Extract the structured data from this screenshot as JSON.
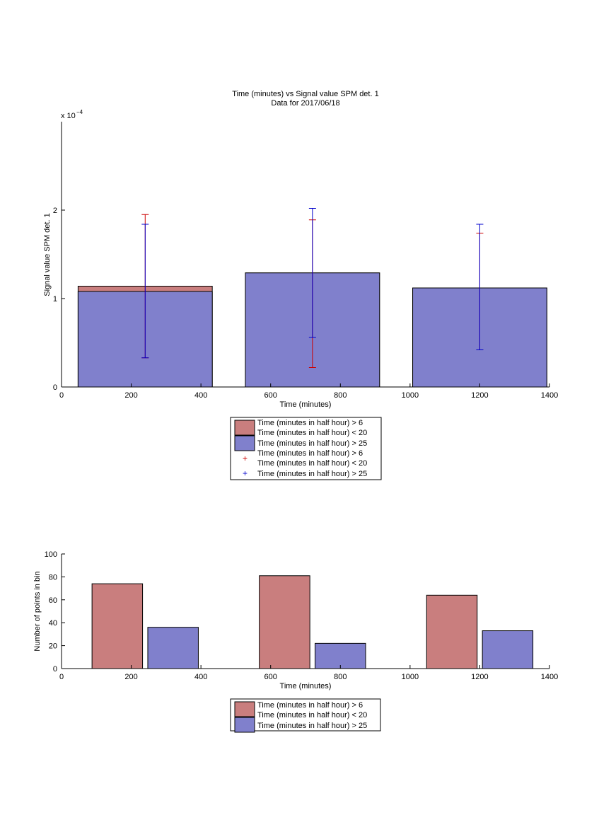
{
  "chart_data": [
    {
      "type": "bar",
      "title": "Time (minutes) vs Signal value SPM det. 1",
      "subtitle": "Data for 2017/06/18",
      "xlabel": "Time (minutes)",
      "ylabel": "Signal value SPM det. 1",
      "exponent_base": "x 10",
      "exponent_power": "−4",
      "xlim": [
        0,
        1400
      ],
      "ylim": [
        0,
        3
      ],
      "xticks": [
        "0",
        "200",
        "400",
        "600",
        "800",
        "1000",
        "1200",
        "1400"
      ],
      "yticks": [
        "0",
        "1",
        "2"
      ],
      "bar_width": 385,
      "bar_centers": [
        240,
        720,
        1200
      ],
      "series": [
        {
          "name": "Time (minutes in half hour) > 6",
          "name_line2": "Time (minutes in half hour) < 20",
          "color": "#c97e7e",
          "values": [
            1.14,
            1.29,
            1.12
          ],
          "errorbars": [
            {
              "x": 240,
              "low": 0.33,
              "high": 1.95
            },
            {
              "x": 720,
              "low": 0.22,
              "high": 1.89
            },
            {
              "x": 1200,
              "low": 0.42,
              "high": 1.74
            }
          ],
          "errorbar_color": "#cc0000"
        },
        {
          "name": "Time (minutes in half hour) > 25",
          "color": "#8080cc",
          "values": [
            1.08,
            1.29,
            1.12
          ],
          "errorbars": [
            {
              "x": 240,
              "low": 0.33,
              "high": 1.84
            },
            {
              "x": 720,
              "low": 0.56,
              "high": 2.02
            },
            {
              "x": 1200,
              "low": 0.42,
              "high": 1.84
            }
          ],
          "errorbar_color": "#0000cc"
        }
      ],
      "grid": false,
      "legend_placement": "below"
    },
    {
      "type": "bar",
      "xlabel": "Time (minutes)",
      "ylabel": "Number of points in bin",
      "xlim": [
        0,
        1400
      ],
      "ylim": [
        0,
        100
      ],
      "xticks": [
        "0",
        "200",
        "400",
        "600",
        "800",
        "1000",
        "1200",
        "1400"
      ],
      "yticks": [
        "0",
        "20",
        "40",
        "60",
        "80",
        "100"
      ],
      "bar_width": 145,
      "series": [
        {
          "name": "Time (minutes in half hour) > 6",
          "name_line2": "Time (minutes in half hour) < 20",
          "color": "#c97e7e",
          "x": [
            160,
            640,
            1120
          ],
          "values": [
            74,
            81,
            64
          ]
        },
        {
          "name": "Time (minutes in half hour) > 25",
          "color": "#8080cc",
          "x": [
            320,
            800,
            1280
          ],
          "values": [
            36,
            22,
            33
          ]
        }
      ],
      "grid": false,
      "legend_placement": "below"
    }
  ]
}
